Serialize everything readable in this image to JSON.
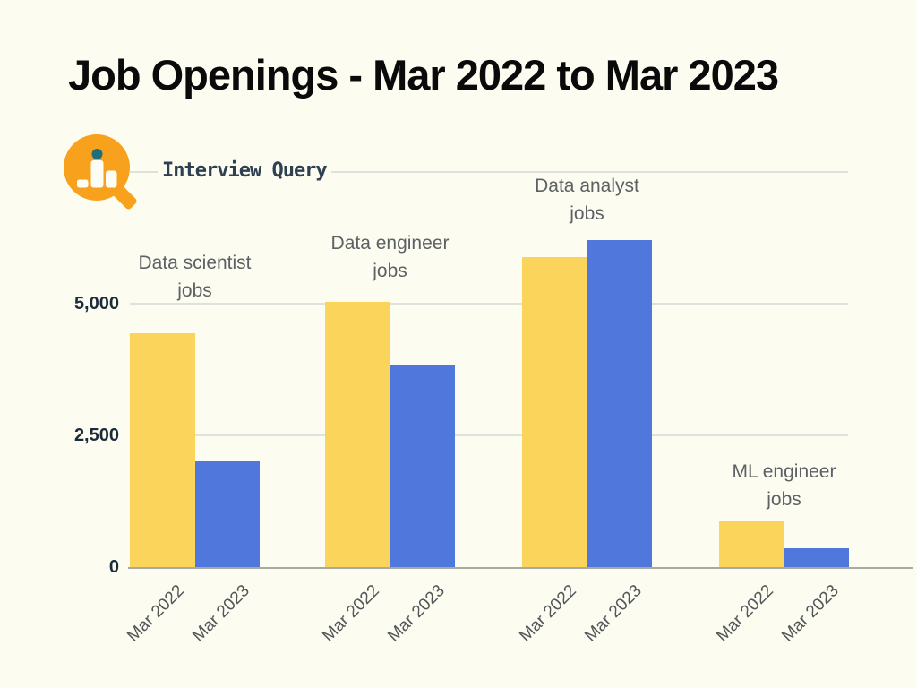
{
  "page": {
    "background": "#FCFCF0"
  },
  "header": {
    "title": "Job Openings - Mar 2022 to Mar 2023"
  },
  "brand": {
    "name": "Interview Query",
    "logo_icon": "magnifier-bar-chart-icon",
    "orange": "#F7A11C",
    "teal": "#1E6F7B",
    "text_color": "#2F4050"
  },
  "chart_data": {
    "type": "bar",
    "title": "Job Openings - Mar 2022 to Mar 2023",
    "categories": [
      "Data scientist jobs",
      "Data engineer jobs",
      "Data analyst jobs",
      "ML engineer jobs"
    ],
    "series": [
      {
        "name": "Mar 2022",
        "color": "#FBD45C",
        "values": [
          4440,
          5040,
          5890,
          875
        ]
      },
      {
        "name": "Mar 2023",
        "color": "#4F77DC",
        "values": [
          2000,
          3850,
          6200,
          360
        ]
      }
    ],
    "ylim": [
      0,
      7500
    ],
    "yticks": [
      0,
      2500,
      5000,
      7500
    ],
    "ytick_labels": [
      "0",
      "2,500",
      "5,000",
      ""
    ],
    "xlabel": "",
    "ylabel": "",
    "grid": "horizontal",
    "legend": "none",
    "x_tick_rotation_deg": -45,
    "colors": {
      "gridline": "#DFE2DC",
      "baseline": "#A6AAA4",
      "axis_label": "#1C2B3A",
      "category_label": "#5D6164",
      "tick_label": "#53575A"
    }
  }
}
